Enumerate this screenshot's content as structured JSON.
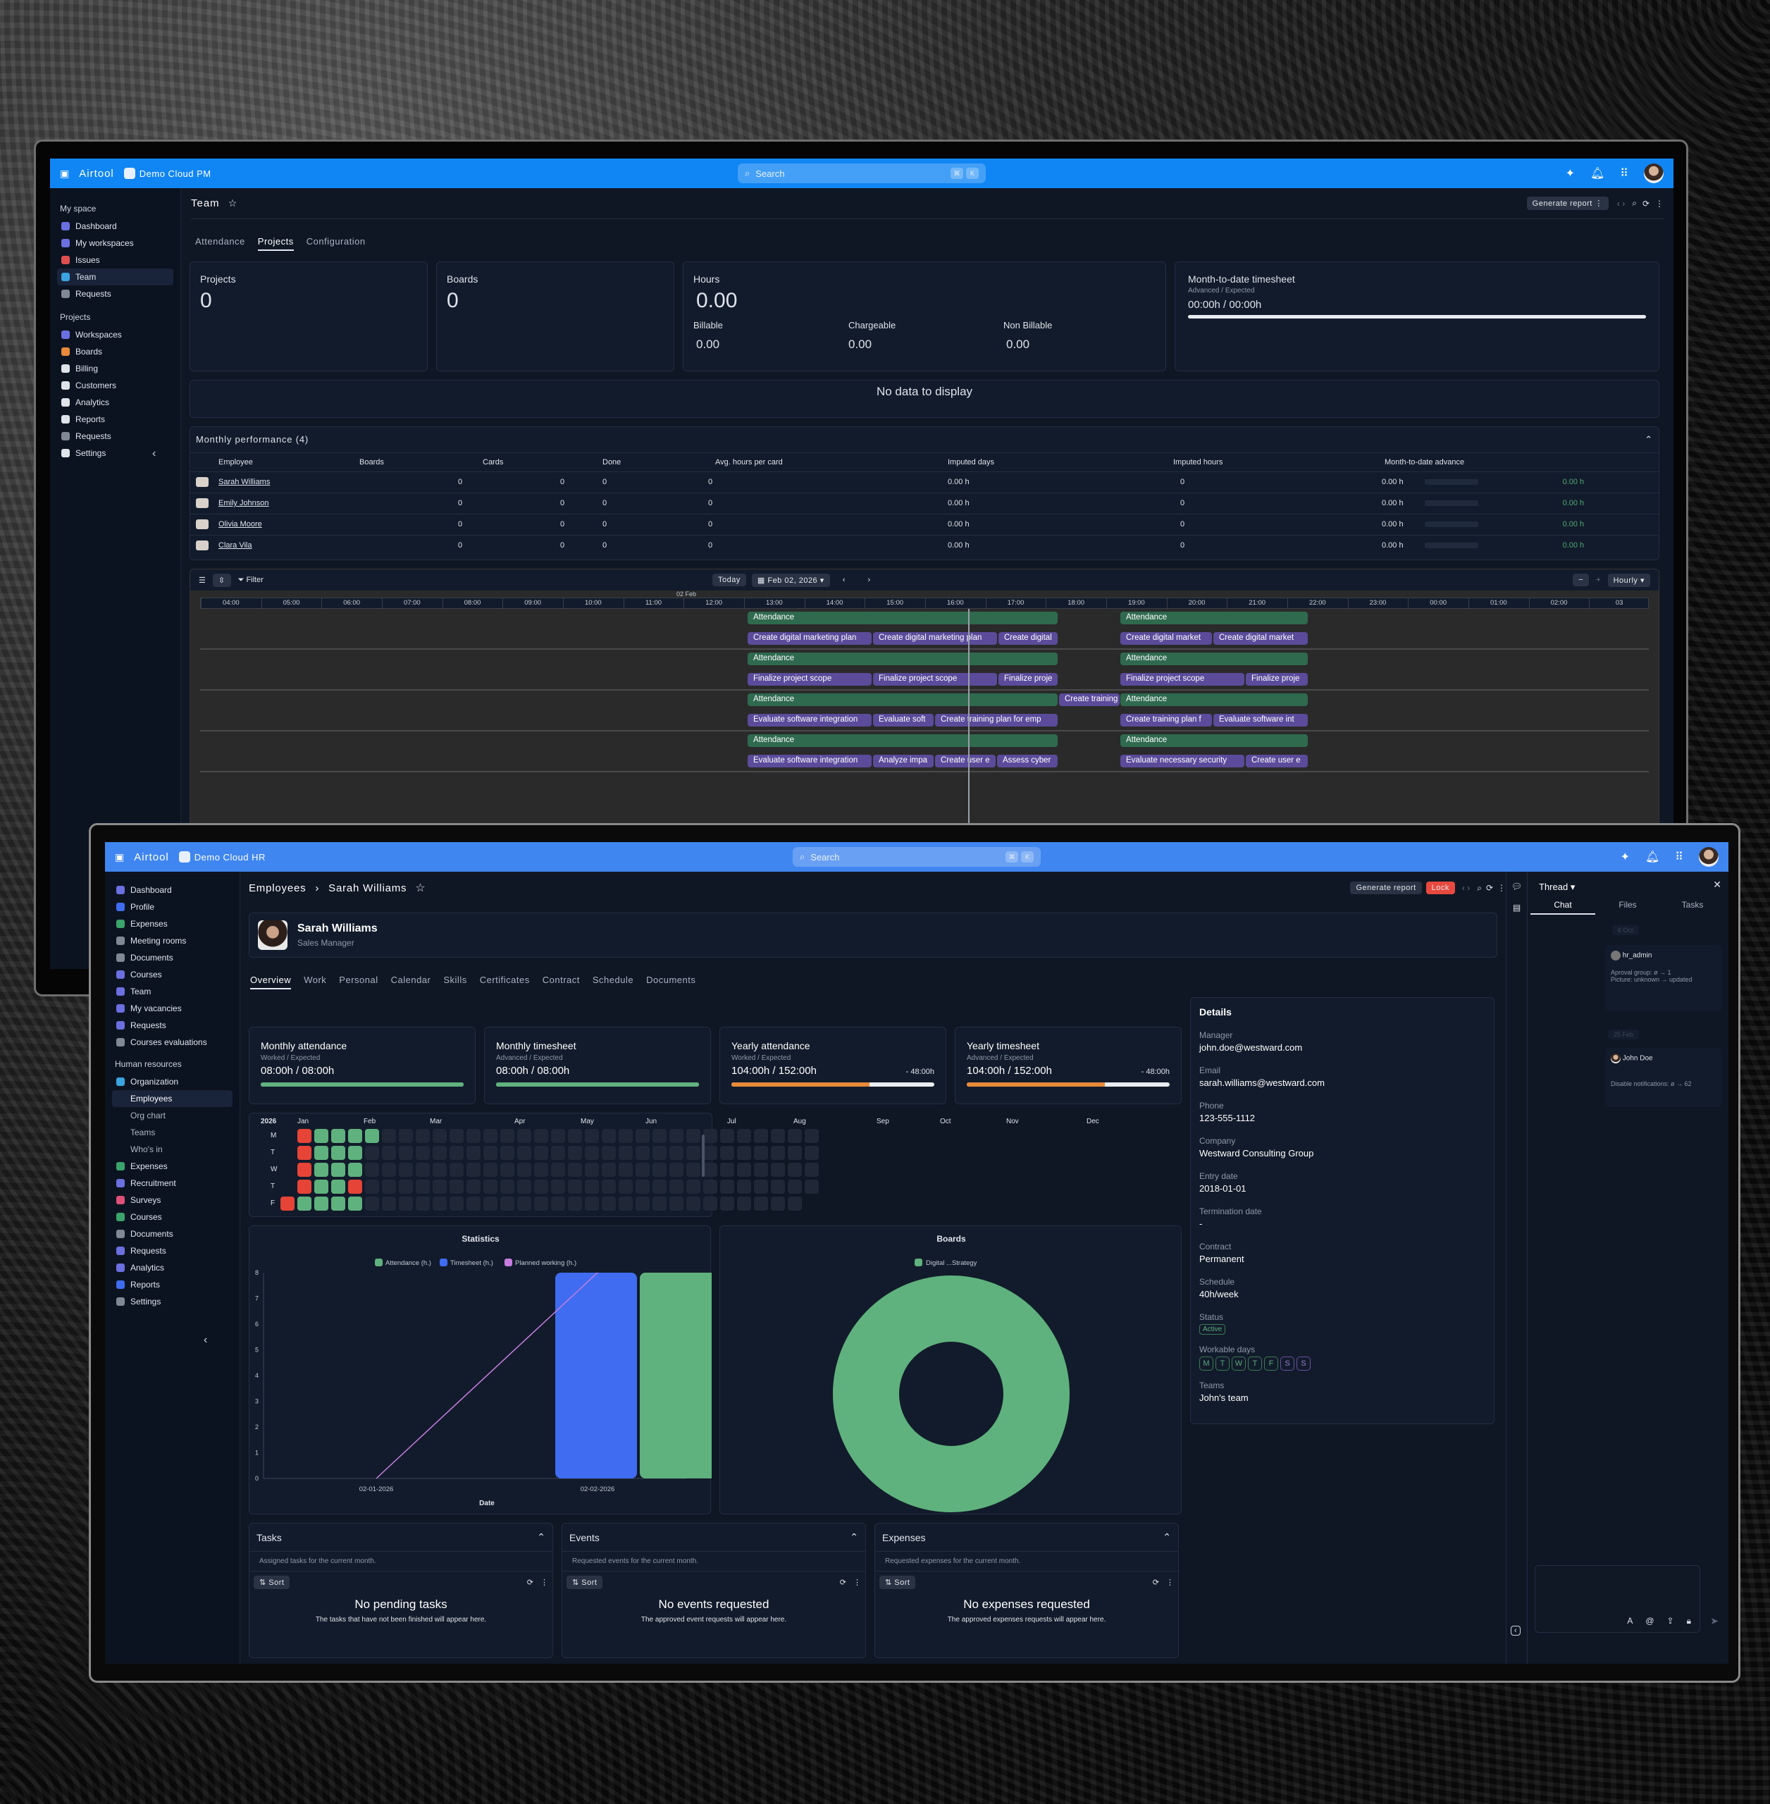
{
  "pm": {
    "brand": "Airtool",
    "workspace": "Demo Cloud PM",
    "search_placeholder": "Search",
    "kbd1": "⌘",
    "kbd2": "K",
    "sidebar": {
      "group1": "My space",
      "items1": [
        "Dashboard",
        "My workspaces",
        "Issues",
        "Team",
        "Requests"
      ],
      "group2": "Projects",
      "items2": [
        "Workspaces",
        "Boards",
        "Billing",
        "Customers",
        "Analytics",
        "Reports",
        "Requests",
        "Settings"
      ]
    },
    "page_title": "Team",
    "generate_report": "Generate report",
    "tabs": [
      "Attendance",
      "Projects",
      "Configuration"
    ],
    "stats": {
      "projects_label": "Projects",
      "projects_value": "0",
      "boards_label": "Boards",
      "boards_value": "0",
      "hours_label": "Hours",
      "hours_value": "0.00",
      "billable_label": "Billable",
      "billable_value": "0.00",
      "chargeable_label": "Chargeable",
      "chargeable_value": "0.00",
      "nonbillable_label": "Non Billable",
      "nonbillable_value": "0.00",
      "mtd_label": "Month-to-date timesheet",
      "mtd_sub": "Advanced / Expected",
      "mtd_value": "00:00h / 00:00h"
    },
    "no_data": "No data to display",
    "monthly_perf": "Monthly performance (4)",
    "perf_headers": [
      "Employee",
      "Boards",
      "Cards",
      "Done",
      "Avg. hours per card",
      "Imputed days",
      "Imputed hours",
      "Month-to-date advance"
    ],
    "perf_rows": [
      {
        "name": "Sarah Williams",
        "boards": "0",
        "cards": "0",
        "done": "0",
        "days": "0.00 h",
        "hours": "0",
        "imp": "0.00 h",
        "adv": "0.00 h"
      },
      {
        "name": "Emily Johnson",
        "boards": "0",
        "cards": "0",
        "done": "0",
        "days": "0.00 h",
        "hours": "0",
        "imp": "0.00 h",
        "adv": "0.00 h"
      },
      {
        "name": "Olivia Moore",
        "boards": "0",
        "cards": "0",
        "done": "0",
        "days": "0.00 h",
        "hours": "0",
        "imp": "0.00 h",
        "adv": "0.00 h"
      },
      {
        "name": "Clara Vila",
        "boards": "0",
        "cards": "0",
        "done": "0",
        "days": "0.00 h",
        "hours": "0",
        "imp": "0.00 h",
        "adv": "0.00 h"
      }
    ],
    "gantt": {
      "filter": "Filter",
      "today": "Today",
      "date": "Feb 02, 2026",
      "scale": "Hourly",
      "day_label": "02 Feb",
      "hours": [
        "04:00",
        "05:00",
        "06:00",
        "07:00",
        "08:00",
        "09:00",
        "10:00",
        "11:00",
        "12:00",
        "13:00",
        "14:00",
        "15:00",
        "16:00",
        "17:00",
        "18:00",
        "19:00",
        "20:00",
        "21:00",
        "22:00",
        "23:00",
        "00:00",
        "01:00",
        "02:00",
        "03"
      ],
      "bars": [
        [
          "Attendance",
          "Attendance"
        ],
        [
          "Create digital marketing plan",
          "Create digital marketing plan",
          "Create digital",
          "Create digital market",
          "Create digital market"
        ],
        [
          "Attendance",
          "Attendance"
        ],
        [
          "Finalize project scope",
          "Finalize project scope",
          "Finalize proje",
          "Finalize project scope",
          "Finalize proje"
        ],
        [
          "Attendance",
          "Create training",
          "Attendance"
        ],
        [
          "Evaluate software integration",
          "Evaluate soft",
          "Create training plan for emp",
          "Create training plan f",
          "Evaluate software int"
        ],
        [
          "Attendance",
          "Attendance"
        ],
        [
          "Evaluate software integration",
          "Analyze impa",
          "Create user e",
          "Assess cyber",
          "Evaluate necessary security",
          "Create user e"
        ]
      ]
    }
  },
  "hr": {
    "brand": "Airtool",
    "workspace": "Demo Cloud HR",
    "search_placeholder": "Search",
    "kbd1": "⌘",
    "kbd2": "K",
    "sidebar": {
      "items1": [
        "Dashboard",
        "Profile",
        "Expenses",
        "Meeting rooms",
        "Documents",
        "Courses",
        "Team",
        "My vacancies",
        "Requests",
        "Courses evaluations"
      ],
      "group": "Human resources",
      "org": "Organization",
      "org_sub": [
        "Employees",
        "Org chart",
        "Teams",
        "Who's in"
      ],
      "items2": [
        "Expenses",
        "Recruitment",
        "Surveys",
        "Courses",
        "Documents",
        "Requests",
        "Analytics",
        "Reports",
        "Settings"
      ]
    },
    "breadcrumb": [
      "Employees",
      "Sarah Williams"
    ],
    "generate_report": "Generate report",
    "lock": "Lock",
    "profile": {
      "name": "Sarah Williams",
      "role": "Sales Manager"
    },
    "tabs": [
      "Overview",
      "Work",
      "Personal",
      "Calendar",
      "Skills",
      "Certificates",
      "Contract",
      "Schedule",
      "Documents"
    ],
    "kpis": [
      {
        "title": "Monthly attendance",
        "sub": "Worked / Expected",
        "value": "08:00h / 08:00h",
        "delta": "",
        "fill": 1.0,
        "color": "#5fb27d"
      },
      {
        "title": "Monthly timesheet",
        "sub": "Advanced / Expected",
        "value": "08:00h / 08:00h",
        "delta": "",
        "fill": 1.0,
        "color": "#5fb27d"
      },
      {
        "title": "Yearly attendance",
        "sub": "Worked / Expected",
        "value": "104:00h / 152:00h",
        "delta": "- 48:00h",
        "fill": 0.68,
        "color": "#e88a3a"
      },
      {
        "title": "Yearly timesheet",
        "sub": "Advanced / Expected",
        "value": "104:00h / 152:00h",
        "delta": "- 48:00h",
        "fill": 0.68,
        "color": "#e88a3a"
      }
    ],
    "heatmap": {
      "year": "2026",
      "months": [
        "Jan",
        "Feb",
        "Mar",
        "Apr",
        "May",
        "Jun",
        "Jul",
        "Aug",
        "Sep",
        "Oct",
        "Nov",
        "Dec"
      ],
      "days": [
        "M",
        "T",
        "W",
        "T",
        "F"
      ]
    },
    "statistics": {
      "title": "Statistics",
      "legend": [
        "Attendance (h.)",
        "Timesheet (h.)",
        "Planned working (h.)"
      ],
      "xlabel": "Date",
      "xticks": [
        "02-01-2026",
        "02-02-2026"
      ],
      "yticks": [
        "0",
        "1",
        "2",
        "3",
        "4",
        "5",
        "6",
        "7",
        "8"
      ]
    },
    "boards_chart": {
      "title": "Boards",
      "legend": [
        "Digital ...Strategy"
      ]
    },
    "details": {
      "title": "Details",
      "fields": [
        {
          "label": "Manager",
          "value": "john.doe@westward.com"
        },
        {
          "label": "Email",
          "value": "sarah.williams@westward.com"
        },
        {
          "label": "Phone",
          "value": "123-555-1112"
        },
        {
          "label": "Company",
          "value": "Westward Consulting Group"
        },
        {
          "label": "Entry date",
          "value": "2018-01-01"
        },
        {
          "label": "Termination date",
          "value": "-"
        },
        {
          "label": "Contract",
          "value": "Permanent"
        },
        {
          "label": "Schedule",
          "value": "40h/week"
        }
      ],
      "status_label": "Status",
      "status_value": "Active",
      "workdays_label": "Workable days",
      "workdays": [
        "M",
        "T",
        "W",
        "T",
        "F",
        "S",
        "S"
      ],
      "teams_label": "Teams",
      "teams_value": "John's team"
    },
    "panels": [
      {
        "title": "Tasks",
        "desc": "Assigned tasks for the current month.",
        "sort": "Sort",
        "empty": "No pending tasks",
        "empty_sub": "The tasks that have not been finished will appear here."
      },
      {
        "title": "Events",
        "desc": "Requested events for the current month.",
        "sort": "Sort",
        "empty": "No events requested",
        "empty_sub": "The approved event requests will appear here."
      },
      {
        "title": "Expenses",
        "desc": "Requested expenses for the current month.",
        "sort": "Sort",
        "empty": "No expenses requested",
        "empty_sub": "The approved expenses requests will appear here."
      }
    ],
    "thread": {
      "title": "Thread",
      "tabs": [
        "Chat",
        "Files",
        "Tasks"
      ],
      "date1": "6 Oct",
      "user1": "hr_admin",
      "line1a": "Aproval group: ø → 1",
      "line1b": "Picture: unknown → updated",
      "date2": "25 Feb",
      "user2": "John Doe",
      "line2": "Disable notifications: ø → 62"
    }
  },
  "chart_data": [
    {
      "type": "bar",
      "title": "Statistics",
      "xlabel": "Date",
      "ylabel": "",
      "categories": [
        "02-01-2026",
        "02-02-2026"
      ],
      "series": [
        {
          "name": "Attendance (h.)",
          "values": [
            0,
            8
          ]
        },
        {
          "name": "Timesheet (h.)",
          "values": [
            0,
            8
          ]
        },
        {
          "name": "Planned working (h.)",
          "values": [
            0,
            8
          ]
        }
      ],
      "ylim": [
        0,
        8
      ]
    },
    {
      "type": "pie",
      "title": "Boards",
      "labels": [
        "Digital ...Strategy"
      ],
      "values": [
        100
      ]
    }
  ],
  "colors": {
    "pm_topbar": "#1086f4",
    "hr_topbar": "#3f86f0",
    "attendance": "#5fb27d",
    "timesheet": "#3f6cf0",
    "planned": "#c77de0",
    "lock": "#e8493f"
  }
}
